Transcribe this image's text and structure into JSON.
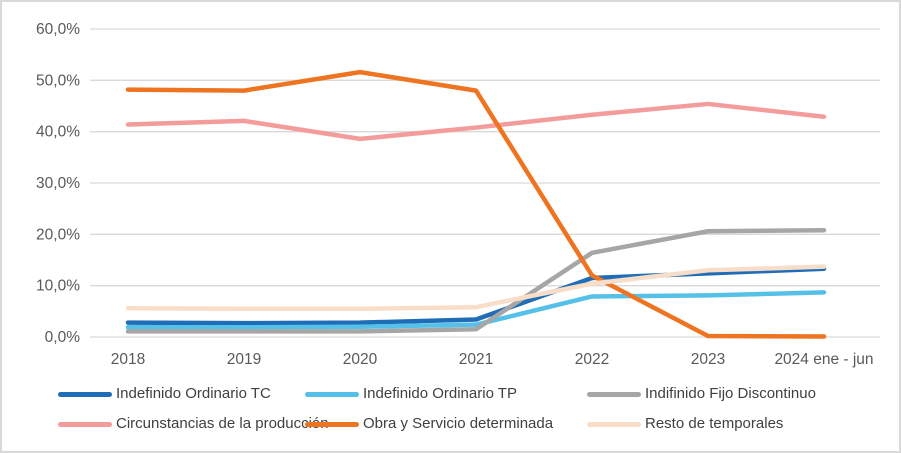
{
  "chart_data": {
    "type": "line",
    "title": "",
    "xlabel": "",
    "ylabel": "",
    "categories": [
      "2018",
      "2019",
      "2020",
      "2021",
      "2022",
      "2023",
      "2024 ene - jun"
    ],
    "series": [
      {
        "name": "Indefinido Ordinario TC",
        "color": "#1f6db6",
        "values": [
          2.8,
          2.7,
          2.8,
          3.4,
          11.5,
          12.4,
          13.3
        ]
      },
      {
        "name": "Indefinido Ordinario TP",
        "color": "#55c1e9",
        "values": [
          1.9,
          1.9,
          2.0,
          2.4,
          7.9,
          8.1,
          8.7
        ]
      },
      {
        "name": "Indifinido Fijo Discontinuo",
        "color": "#a6a6a6",
        "values": [
          1.1,
          1.1,
          1.1,
          1.5,
          16.4,
          20.6,
          20.8
        ]
      },
      {
        "name": "Circunstancias de la producción",
        "color": "#f49c9c",
        "values": [
          41.4,
          42.1,
          38.6,
          40.8,
          43.3,
          45.4,
          42.9
        ]
      },
      {
        "name": "Obra y Servicio determinada",
        "color": "#ee7421",
        "values": [
          48.2,
          48.0,
          51.6,
          48.0,
          12.0,
          0.2,
          0.1
        ]
      },
      {
        "name": "Resto de temporales",
        "color": "#f8ddc9",
        "values": [
          5.6,
          5.5,
          5.5,
          5.8,
          10.4,
          13.0,
          13.7
        ]
      }
    ],
    "ylim": [
      0,
      60
    ],
    "ytick_step": 10,
    "ytick_labels": [
      "0,0%",
      "10,0%",
      "20,0%",
      "30,0%",
      "40,0%",
      "50,0%",
      "60,0%"
    ],
    "grid": true,
    "legend_position": "bottom",
    "colors": {
      "gridline": "#d9d9d9",
      "axis_text": "#595959",
      "legend_text": "#404040",
      "frame_border": "#d9d9d9"
    }
  }
}
